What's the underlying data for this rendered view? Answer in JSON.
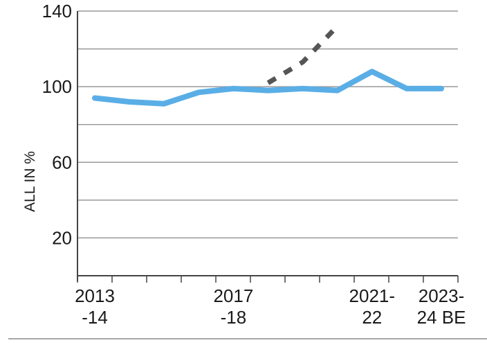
{
  "chart_data": {
    "type": "line",
    "title": "",
    "xlabel": "",
    "ylabel": "ALL IN %",
    "ylim": [
      0,
      140
    ],
    "y_ticks": [
      "20",
      "60",
      "100",
      "140"
    ],
    "x_tick_labels": [
      {
        "index": 0,
        "lines": [
          "2013",
          "-14"
        ]
      },
      {
        "index": 4,
        "lines": [
          "2017",
          "-18"
        ]
      },
      {
        "index": 8,
        "lines": [
          "2021-",
          "22"
        ]
      },
      {
        "index": 10,
        "lines": [
          "2023-",
          "24 BE"
        ]
      }
    ],
    "x_count": 11,
    "grid": true,
    "series": [
      {
        "style": "solid",
        "color": "#5aaee6",
        "values": [
          94,
          92,
          91,
          97,
          99,
          98,
          99,
          98,
          108,
          99,
          99
        ]
      },
      {
        "style": "dashed",
        "color": "#555555",
        "x_start": 5,
        "values": [
          102,
          113,
          132
        ]
      }
    ]
  }
}
